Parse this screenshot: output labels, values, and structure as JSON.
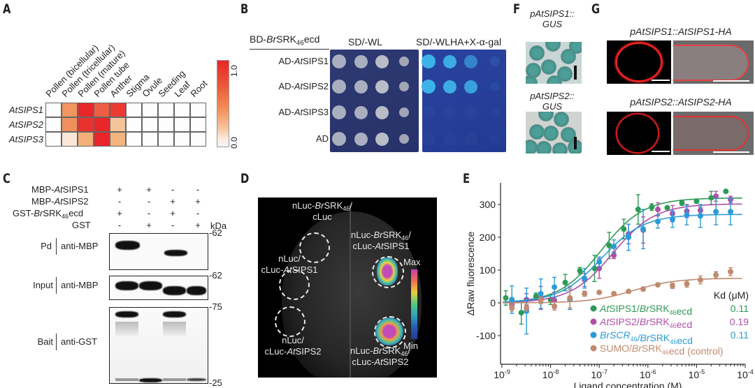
{
  "panels": {
    "A": {
      "label": "A",
      "columns": [
        "Pollen (bicellular)",
        "Pollen (tricellular)",
        "Pollen (mature)",
        "Pollen tube",
        "Anther",
        "Stigma",
        "Ovule",
        "Seeding",
        "Leaf",
        "Root"
      ],
      "rows": [
        "AtSIPS1",
        "AtSIPS2",
        "AtSIPS3"
      ],
      "values": [
        [
          0.0,
          0.55,
          1.0,
          0.75,
          0.9,
          0.0,
          0.0,
          0.0,
          0.0,
          0.0
        ],
        [
          0.0,
          0.58,
          0.95,
          1.0,
          0.3,
          0.0,
          0.0,
          0.0,
          0.0,
          0.0
        ],
        [
          0.0,
          0.12,
          0.4,
          1.0,
          0.38,
          0.0,
          0.0,
          0.0,
          0.0,
          0.0
        ]
      ],
      "colorbar": {
        "max_label": "1.0",
        "min_label": "0.0",
        "max_color": "#e8262a",
        "min_color": "#f3f3f5"
      }
    },
    "B": {
      "label": "B",
      "bait_prefix": "BD-",
      "bait_italic": "Br",
      "bait_main": "SRK",
      "bait_sub": "46",
      "bait_suffix": "ecd",
      "plate1_title": "SD/-WL",
      "plate2_title": "SD/-WLHA+X-α-gal",
      "rows": [
        {
          "prefix": "AD-",
          "italic": "At",
          "name": "SIPS1",
          "growth_sel": [
            1,
            0.95,
            0.6,
            0.15
          ]
        },
        {
          "prefix": "AD-",
          "italic": "At",
          "name": "SIPS2",
          "growth_sel": [
            1,
            0.95,
            0.85,
            0.1
          ]
        },
        {
          "prefix": "AD-",
          "italic": "At",
          "name": "SIPS3",
          "growth_sel": [
            0,
            0,
            0,
            0
          ]
        },
        {
          "prefix": "AD",
          "italic": "",
          "name": "",
          "growth_sel": [
            0,
            0,
            0,
            0
          ]
        }
      ]
    },
    "F": {
      "label": "F",
      "img1_title_l1": "pAtSIPS1::",
      "img1_title_l2": "GUS",
      "img2_title_l1": "pAtSIPS2::",
      "img2_title_l2": "GUS"
    },
    "G": {
      "label": "G",
      "row1_title": "pAtSIPS1::AtSIPS1-HA",
      "row2_title": "pAtSIPS2::AtSIPS2-HA"
    },
    "C": {
      "label": "C",
      "conditions": [
        {
          "pre": "MBP-",
          "it": "At",
          "post": "SIPS1",
          "sub": "",
          "tail": "",
          "signs": [
            "+",
            "+",
            "-",
            "-"
          ]
        },
        {
          "pre": "MBP-",
          "it": "At",
          "post": "SIPS2",
          "sub": "",
          "tail": "",
          "signs": [
            "-",
            "-",
            "+",
            "+"
          ]
        },
        {
          "pre": "GST-",
          "it": "Br",
          "post": "SRK",
          "sub": "46",
          "tail": "ecd",
          "signs": [
            "+",
            "-",
            "+",
            "-"
          ]
        },
        {
          "pre": "GST",
          "it": "",
          "post": "",
          "sub": "",
          "tail": "",
          "signs": [
            "-",
            "+",
            "-",
            "+"
          ]
        }
      ],
      "kda_label": "kDa",
      "blots": [
        {
          "name": "Pd",
          "antibody": "anti-MBP",
          "marker_top": "-62",
          "marker_bottom": ""
        },
        {
          "name": "Input",
          "antibody": "anti-MBP",
          "marker_top": "-62",
          "marker_bottom": ""
        },
        {
          "name": "Bait",
          "antibody": "anti-GST",
          "marker_top": "-75",
          "marker_bottom": "-25"
        }
      ]
    },
    "D": {
      "label": "D",
      "spots": [
        {
          "l1_pre": "nLuc-",
          "l1_it": "Br",
          "l1_post": "SRK",
          "l1_sub": "46",
          "l1_tail": "/",
          "l2_pre": "cLuc",
          "l2_it": "",
          "l2_post": ""
        },
        {
          "l1_pre": "nLuc/",
          "l1_it": "",
          "l1_post": "",
          "l1_sub": "",
          "l1_tail": "",
          "l2_pre": "cLuc-",
          "l2_it": "At",
          "l2_post": "SIPS1"
        },
        {
          "l1_pre": "nLuc/",
          "l1_it": "",
          "l1_post": "",
          "l1_sub": "",
          "l1_tail": "",
          "l2_pre": "cLuc-",
          "l2_it": "At",
          "l2_post": "SIPS2"
        },
        {
          "l1_pre": "nLuc-",
          "l1_it": "Br",
          "l1_post": "SRK",
          "l1_sub": "46",
          "l1_tail": "/",
          "l2_pre": "cLuc-",
          "l2_it": "At",
          "l2_post": "SIPS1"
        },
        {
          "l1_pre": "nLuc-",
          "l1_it": "Br",
          "l1_post": "SRK",
          "l1_sub": "46",
          "l1_tail": "/",
          "l2_pre": "cLuc-",
          "l2_it": "At",
          "l2_post": "SIPS2"
        }
      ],
      "scale_max": "Max",
      "scale_min": "Min"
    },
    "E": {
      "label": "E"
    }
  },
  "chart_data": {
    "type": "scatter",
    "title": "",
    "xlabel": "Ligand concentration (M)",
    "ylabel": "ΔRaw fluorescence",
    "xscale": "log",
    "xlim": [
      1e-09,
      0.0001
    ],
    "ylim": [
      -170,
      390
    ],
    "x_tick_labels": [
      {
        "base": "10",
        "exp": "-9"
      },
      {
        "base": "10",
        "exp": "-8"
      },
      {
        "base": "10",
        "exp": "-7"
      },
      {
        "base": "10",
        "exp": "-6"
      },
      {
        "base": "10",
        "exp": "-5"
      },
      {
        "base": "10",
        "exp": "-4"
      }
    ],
    "y_ticks": [
      -100,
      0,
      100,
      200,
      300
    ],
    "legend_title": "Kd (μM)",
    "legend_position": "bottom-right",
    "x": [
      1.2e-09,
      1.6e-09,
      2.5e-09,
      3.2e-09,
      5e-09,
      6.3e-09,
      1e-08,
      1.2e-08,
      2e-08,
      2.5e-08,
      4e-08,
      5e-08,
      8e-08,
      1e-07,
      1.6e-07,
      2e-07,
      3.2e-07,
      4e-07,
      8e-07,
      1.2e-06,
      1.6e-06,
      2.5e-06,
      3.2e-06,
      5e-06,
      6.3e-06,
      1e-05,
      1.2e-05,
      2e-05,
      2.5e-05,
      4e-05,
      5e-05
    ],
    "series": [
      {
        "name": "AtSIPS1/BrSRK46ecd",
        "name_parts": [
          {
            "t": "At",
            "i": true
          },
          {
            "t": "SIPS1/",
            "i": false
          },
          {
            "t": "Br",
            "i": true
          },
          {
            "t": "SRK",
            "i": false
          },
          {
            "t": "46",
            "sub": true
          },
          {
            "t": "ecd",
            "i": false
          }
        ],
        "kd": "0.11",
        "color": "#2e9a55",
        "fit": {
          "bottom": 0,
          "top": 320,
          "ec50": 1.1e-07,
          "hill": 1
        },
        "points": [
          [
            1.2e-09,
            15,
            22
          ],
          [
            2.5e-09,
            -30,
            35
          ],
          [
            5e-09,
            20,
            10
          ],
          [
            1e-08,
            10,
            15
          ],
          [
            2e-08,
            62,
            25
          ],
          [
            4e-08,
            98,
            10
          ],
          [
            8e-08,
            105,
            40
          ],
          [
            1.6e-07,
            175,
            40
          ],
          [
            3.2e-07,
            225,
            30
          ],
          [
            6.3e-07,
            285,
            45
          ],
          [
            1.2e-06,
            292,
            10
          ],
          [
            2.5e-06,
            290,
            5
          ],
          [
            5e-06,
            305,
            8
          ],
          [
            1e-05,
            310,
            6
          ],
          [
            2e-05,
            320,
            20
          ],
          [
            4e-05,
            340,
            0
          ]
        ]
      },
      {
        "name": "AtSIPS2/BrSRK46ecd",
        "name_parts": [
          {
            "t": "At",
            "i": true
          },
          {
            "t": "SIPS2/",
            "i": false
          },
          {
            "t": "Br",
            "i": true
          },
          {
            "t": "SRK",
            "i": false
          },
          {
            "t": "46",
            "sub": true
          },
          {
            "t": "ecd",
            "i": false
          }
        ],
        "kd": "0.19",
        "color": "#b04fa8",
        "fit": {
          "bottom": 0,
          "top": 302,
          "ec50": 1.9e-07,
          "hill": 1
        },
        "points": [
          [
            1.6e-09,
            -5,
            15
          ],
          [
            3.2e-09,
            10,
            18
          ],
          [
            6.3e-09,
            15,
            35
          ],
          [
            1.2e-08,
            8,
            25
          ],
          [
            2.5e-08,
            15,
            35
          ],
          [
            5e-08,
            70,
            20
          ],
          [
            1e-07,
            105,
            30
          ],
          [
            2e-07,
            145,
            10
          ],
          [
            4e-07,
            210,
            30
          ],
          [
            8e-07,
            222,
            40
          ],
          [
            1.6e-06,
            285,
            20
          ],
          [
            3.2e-06,
            272,
            25
          ],
          [
            6.3e-06,
            280,
            20
          ],
          [
            1.2e-05,
            282,
            10
          ],
          [
            2.5e-05,
            325,
            15
          ],
          [
            5e-05,
            315,
            10
          ]
        ]
      },
      {
        "name": "BrSCR46/BrSRK46ecd",
        "name_parts": [
          {
            "t": "Br",
            "i": true
          },
          {
            "t": "SCR",
            "i": true
          },
          {
            "t": "46",
            "sub": true
          },
          {
            "t": "/",
            "i": true
          },
          {
            "t": "Br",
            "i": true
          },
          {
            "t": "SRK",
            "i": false
          },
          {
            "t": "46",
            "sub": true
          },
          {
            "t": "ecd",
            "i": false
          }
        ],
        "kd": "0.11",
        "color": "#2b9bd8",
        "fit": {
          "bottom": 0,
          "top": 270,
          "ec50": 1.1e-07,
          "hill": 1
        },
        "points": [
          [
            1.6e-09,
            10,
            42
          ],
          [
            3.2e-09,
            -25,
            70
          ],
          [
            6.3e-09,
            28,
            45
          ],
          [
            1.2e-08,
            48,
            30
          ],
          [
            2.5e-08,
            10,
            30
          ],
          [
            5e-08,
            75,
            30
          ],
          [
            1e-07,
            125,
            15
          ],
          [
            2e-07,
            172,
            20
          ],
          [
            4e-07,
            200,
            40
          ],
          [
            8e-07,
            225,
            60
          ],
          [
            1.6e-06,
            248,
            20
          ],
          [
            3.2e-06,
            255,
            25
          ],
          [
            6.3e-06,
            268,
            30
          ],
          [
            1.2e-05,
            265,
            35
          ],
          [
            2.5e-05,
            278,
            40
          ],
          [
            5e-05,
            278,
            40
          ]
        ]
      },
      {
        "name": "SUMO/BrSRK46ecd (control)",
        "name_parts": [
          {
            "t": "SUMO/",
            "i": false
          },
          {
            "t": "Br",
            "i": true
          },
          {
            "t": "SRK",
            "i": false
          },
          {
            "t": "46",
            "sub": true
          },
          {
            "t": "ecd (control)",
            "i": false
          }
        ],
        "kd": "",
        "color": "#c08a6e",
        "fit": {
          "bottom": 0,
          "top": 75,
          "ec50": 5e-07,
          "hill": 1
        },
        "points": [
          [
            1.6e-09,
            -15,
            10
          ],
          [
            3.2e-09,
            -15,
            10
          ],
          [
            6.3e-09,
            8,
            10
          ],
          [
            1.2e-08,
            -10,
            12
          ],
          [
            2.5e-08,
            15,
            30
          ],
          [
            5e-08,
            28,
            8
          ],
          [
            1e-07,
            32,
            3
          ],
          [
            2e-07,
            28,
            3
          ],
          [
            4e-07,
            35,
            3
          ],
          [
            8e-07,
            42,
            5
          ],
          [
            1.6e-06,
            55,
            3
          ],
          [
            3.2e-06,
            52,
            8
          ],
          [
            6.3e-06,
            58,
            10
          ],
          [
            1.2e-05,
            70,
            12
          ],
          [
            2.5e-05,
            85,
            10
          ],
          [
            5e-05,
            95,
            12
          ]
        ]
      }
    ]
  }
}
